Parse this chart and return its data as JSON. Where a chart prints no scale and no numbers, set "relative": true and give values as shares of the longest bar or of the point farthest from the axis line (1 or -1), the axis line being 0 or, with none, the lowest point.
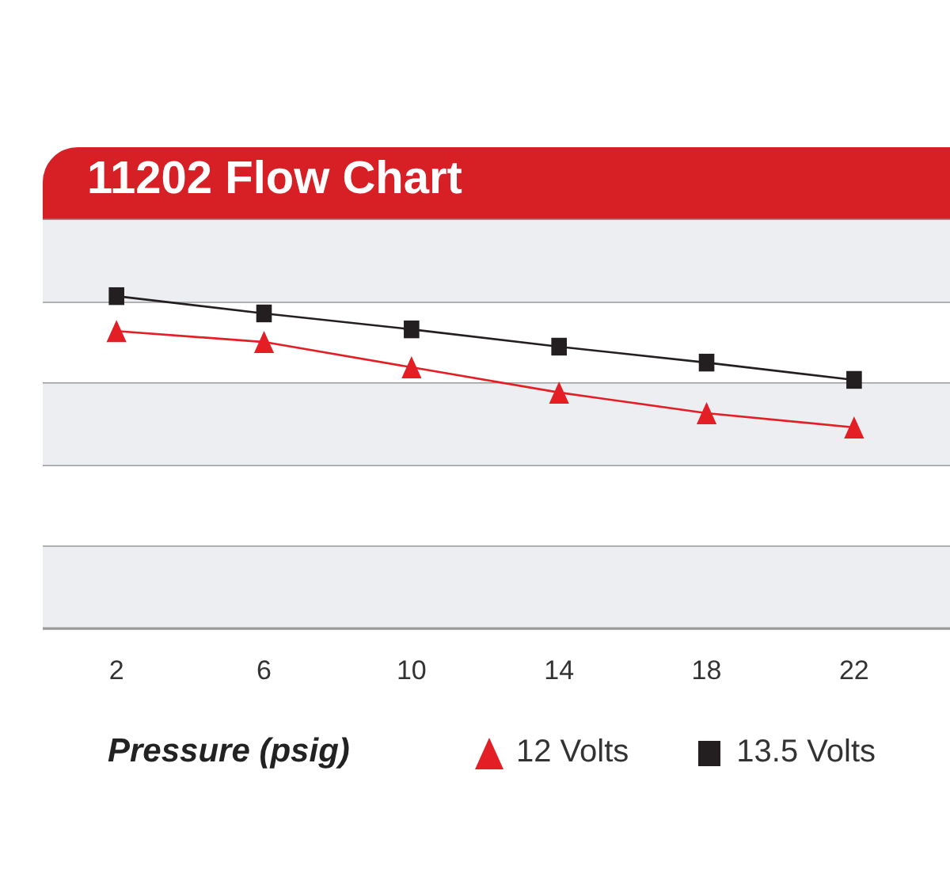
{
  "chart_data": {
    "type": "line",
    "title": "11202 Flow Chart",
    "xlabel": "Pressure (psig)",
    "relative": true,
    "x": [
      2,
      6,
      10,
      14,
      18,
      22
    ],
    "xlim": [
      0,
      24.6
    ],
    "xticks": [
      2,
      6,
      10,
      14,
      18,
      22
    ],
    "grid": "y",
    "legend": "bottom",
    "line_style": "solid",
    "bands": [
      {
        "axis": "y",
        "from": 0,
        "to": 0.246,
        "color": "#eceef2"
      },
      {
        "axis": "y",
        "from": 0.492,
        "to": 0.737,
        "color": "#eceef2"
      },
      {
        "axis": "y",
        "from": 0.983,
        "to": 1.229,
        "color": "#eceef2"
      }
    ],
    "series": [
      {
        "name": "12 Volts",
        "color": "#e31e24",
        "marker": "triangle",
        "values": [
          0.895,
          0.862,
          0.786,
          0.71,
          0.648,
          0.605
        ]
      },
      {
        "name": "13.5 Volts",
        "color": "#231f20",
        "marker": "square",
        "values": [
          1,
          0.948,
          0.9,
          0.848,
          0.8,
          0.748
        ]
      }
    ]
  }
}
